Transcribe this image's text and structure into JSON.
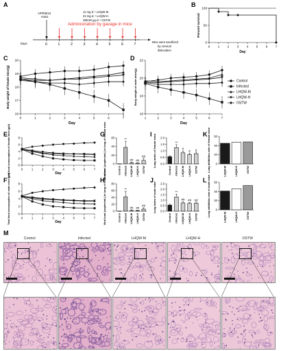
{
  "panel_labels": [
    "A",
    "B",
    "C",
    "D",
    "E",
    "F",
    "G",
    "H",
    "I",
    "J",
    "K",
    "L",
    "M"
  ],
  "timeline": {
    "days_label": "Days",
    "day_ticks": [
      "0",
      "1",
      "2",
      "3",
      "4",
      "5",
      "6",
      "7"
    ],
    "infection_label_1": "A/PR/8/34",
    "infection_label_2": "H1N1",
    "dose_lines": [
      "11 mg·d⁻¹ LHQW-M",
      "22 mg·d⁻¹ LHQW-H",
      "395.90 μg·d⁻¹ OSTW"
    ],
    "admin_text": "Administration by gavage in mice",
    "sacrifice_text_1": "Mice were sacrificed",
    "sacrifice_text_2": "by cervical",
    "sacrifice_text_3": "dislocation",
    "admin_color": "#e8302a"
  },
  "legend": {
    "items": [
      {
        "label": "Control",
        "marker": "circle"
      },
      {
        "label": "Infected",
        "marker": "square"
      },
      {
        "label": "LHQW-M",
        "marker": "triangle-up"
      },
      {
        "label": "LHQW-H",
        "marker": "triangle-down"
      },
      {
        "label": "OSTW",
        "marker": "diamond"
      }
    ]
  },
  "chart_data": [
    {
      "panel": "B",
      "type": "line",
      "ylabel": "Percent survival",
      "xlabel": "Day",
      "x": [
        0,
        1,
        2,
        3,
        7
      ],
      "series": [
        {
          "values": [
            100,
            90,
            80,
            80,
            0
          ]
        }
      ],
      "ylim": [
        0,
        100
      ],
      "yticks": [
        "0",
        "50",
        "100"
      ],
      "xticks": [
        "0",
        "1",
        "2",
        "3",
        "4",
        "5",
        "6",
        "7"
      ]
    },
    {
      "panel": "C",
      "type": "line",
      "ylabel": "Body weight of female mice(g)",
      "xlabel": "Day",
      "x": [
        0,
        1,
        2,
        3,
        4,
        5,
        6,
        7
      ],
      "ylim": [
        16,
        20
      ],
      "yticks": [
        "16",
        "17",
        "18",
        "19",
        "20"
      ],
      "series": [
        {
          "name": "Control",
          "values": [
            18.8,
            19.0,
            19.1,
            19.2,
            19.2,
            19.3,
            19.5,
            19.6
          ]
        },
        {
          "name": "Infected",
          "values": [
            18.6,
            18.4,
            18.2,
            17.9,
            17.6,
            17.3,
            17.0,
            16.3
          ]
        },
        {
          "name": "LHQW-M",
          "values": [
            18.6,
            18.5,
            18.5,
            18.6,
            18.7,
            18.8,
            18.9,
            19.1
          ]
        },
        {
          "name": "LHQW-H",
          "values": [
            18.7,
            18.6,
            18.5,
            18.6,
            18.6,
            18.7,
            18.8,
            18.9
          ]
        },
        {
          "name": "OSTW",
          "values": [
            18.5,
            18.4,
            18.3,
            18.3,
            18.2,
            18.3,
            18.4,
            18.4
          ]
        }
      ]
    },
    {
      "panel": "D",
      "type": "line",
      "ylabel": "Body weight of male mice(g)",
      "xlabel": "Day",
      "x": [
        1,
        2,
        3,
        4,
        5,
        6,
        7
      ],
      "ylim": [
        16,
        22
      ],
      "yticks": [
        "16",
        "18",
        "20",
        "22"
      ],
      "series": [
        {
          "name": "Control",
          "values": [
            19.6,
            19.8,
            20.0,
            20.1,
            20.2,
            20.4,
            20.9
          ]
        },
        {
          "name": "Infected",
          "values": [
            19.4,
            19.0,
            18.7,
            18.4,
            18.1,
            17.7,
            17.3
          ]
        },
        {
          "name": "LHQW-M",
          "values": [
            19.7,
            19.6,
            19.7,
            19.8,
            19.9,
            20.0,
            20.4
          ]
        },
        {
          "name": "LHQW-H",
          "values": [
            19.5,
            19.5,
            19.6,
            19.7,
            19.8,
            19.9,
            20.1
          ]
        },
        {
          "name": "OSTW",
          "values": [
            19.5,
            19.3,
            19.3,
            19.3,
            19.4,
            19.4,
            19.5
          ]
        }
      ]
    },
    {
      "panel": "E",
      "type": "line",
      "ylabel": "Total food consumption of female mice (g/d)",
      "xlabel": "Day",
      "x": [
        0,
        1,
        2,
        3,
        4,
        5,
        6,
        7
      ],
      "ylim": [
        0,
        8
      ],
      "yticks": [
        "0",
        "2",
        "4",
        "6",
        "8"
      ],
      "series": [
        {
          "name": "Control",
          "values": [
            4.8,
            5.4,
            5.7,
            6.0,
            6.2,
            6.3,
            6.5,
            6.6
          ]
        },
        {
          "name": "Infected",
          "values": [
            4.6,
            3.4,
            2.6,
            2.0,
            1.7,
            1.5,
            1.4,
            1.4
          ]
        },
        {
          "name": "LHQW-M",
          "values": [
            4.7,
            4.1,
            3.6,
            3.4,
            3.3,
            3.3,
            3.2,
            3.1
          ]
        },
        {
          "name": "LHQW-H",
          "values": [
            4.7,
            4.3,
            3.9,
            3.6,
            3.4,
            3.3,
            3.3,
            3.2
          ]
        },
        {
          "name": "OSTW",
          "values": [
            4.6,
            4.0,
            3.4,
            3.0,
            2.8,
            2.6,
            2.5,
            2.4
          ]
        }
      ]
    },
    {
      "panel": "F",
      "type": "line",
      "ylabel": "Total food consumption of male mice (g/d)",
      "xlabel": "Day",
      "x": [
        0,
        1,
        2,
        3,
        4,
        5,
        6,
        7
      ],
      "ylim": [
        0,
        8
      ],
      "yticks": [
        "0",
        "2",
        "4",
        "6",
        "8"
      ],
      "series": [
        {
          "name": "Control",
          "values": [
            4.8,
            5.6,
            6.0,
            6.3,
            6.5,
            6.7,
            6.9,
            7.0
          ]
        },
        {
          "name": "Infected",
          "values": [
            4.6,
            3.3,
            2.5,
            2.0,
            1.8,
            1.6,
            1.5,
            1.5
          ]
        },
        {
          "name": "LHQW-M",
          "values": [
            4.7,
            4.3,
            3.9,
            3.8,
            3.6,
            3.5,
            3.4,
            3.4
          ]
        },
        {
          "name": "LHQW-H",
          "values": [
            4.7,
            4.4,
            4.1,
            3.9,
            3.7,
            3.6,
            3.5,
            3.5
          ]
        },
        {
          "name": "OSTW",
          "values": [
            4.6,
            4.0,
            3.5,
            3.2,
            3.0,
            2.8,
            2.7,
            2.6
          ]
        }
      ]
    },
    {
      "panel": "G",
      "type": "bar",
      "ylabel": "Viral load (copies/mL) in lung of female mice",
      "categories": [
        "Control",
        "Infected",
        "LHQW-M",
        "LHQW-H",
        "OSTW"
      ],
      "values": [
        0.2,
        38,
        2,
        1.5,
        8
      ],
      "errors": [
        0.2,
        14,
        2,
        1.5,
        5
      ],
      "ylim": [
        0,
        60
      ],
      "yticks": [
        "0",
        "20",
        "40",
        "60"
      ],
      "colors": [
        "#d0d0d0",
        "#b8b8b8",
        "#d0d0d0",
        "#d0d0d0",
        "#d0d0d0"
      ],
      "sig": [
        "",
        "**",
        "##",
        "##",
        "##"
      ]
    },
    {
      "panel": "H",
      "type": "bar",
      "ylabel": "Viral load (copies/mL) in lung of male mice",
      "categories": [
        "Control",
        "Infected",
        "LHQW-M",
        "LHQW-H",
        "OSTW"
      ],
      "values": [
        0.2,
        42,
        2,
        1.5,
        6
      ],
      "errors": [
        0.2,
        16,
        2,
        1.5,
        4
      ],
      "ylim": [
        0,
        80
      ],
      "yticks": [
        "0",
        "20",
        "40",
        "60",
        "80"
      ],
      "colors": [
        "#d0d0d0",
        "#b8b8b8",
        "#d0d0d0",
        "#d0d0d0",
        "#d0d0d0"
      ],
      "sig": [
        "",
        "**",
        "##",
        "##",
        "##"
      ]
    },
    {
      "panel": "I",
      "type": "bar",
      "ylabel": "Lung index of female mice",
      "categories": [
        "Control",
        "Infected",
        "LHQW-M",
        "LHQW-H",
        "OSTW"
      ],
      "values": [
        0.55,
        1.25,
        0.85,
        0.72,
        0.78
      ],
      "errors": [
        0.08,
        0.22,
        0.14,
        0.1,
        0.12
      ],
      "ylim": [
        0,
        2.0
      ],
      "yticks": [
        "0.0",
        "0.5",
        "1.0",
        "1.5",
        "2.0"
      ],
      "colors": [
        "#1a1a1a",
        "#d0d0d0",
        "#d0d0d0",
        "#d0d0d0",
        "#d0d0d0"
      ],
      "sig": [
        "",
        "**",
        "#",
        "#",
        "#"
      ]
    },
    {
      "panel": "J",
      "type": "bar",
      "ylabel": "Lung index of male mice",
      "categories": [
        "Control",
        "Infected",
        "LHQW-M",
        "LHQW-H",
        "OSTW"
      ],
      "values": [
        0.55,
        1.3,
        0.75,
        0.7,
        0.72
      ],
      "errors": [
        0.08,
        0.25,
        0.12,
        0.1,
        0.1
      ],
      "ylim": [
        0,
        2.5
      ],
      "yticks": [
        "0.0",
        "0.5",
        "1.0",
        "1.5",
        "2.0",
        "2.5"
      ],
      "colors": [
        "#1a1a1a",
        "#d0d0d0",
        "#d0d0d0",
        "#d0d0d0",
        "#d0d0d0"
      ],
      "sig": [
        "",
        "**",
        "##",
        "##",
        "##"
      ]
    },
    {
      "panel": "K",
      "type": "bar",
      "ylabel": "Lung inhibition rate of female mice",
      "categories": [
        "LHQW-M",
        "LHQW-H",
        "OSTW"
      ],
      "values": [
        45,
        47,
        48
      ],
      "ylim": [
        0,
        60
      ],
      "yticks": [
        "0",
        "20",
        "40",
        "60"
      ],
      "colors": [
        "#1a1a1a",
        "#ffffff",
        "#9a9a9a"
      ]
    },
    {
      "panel": "L",
      "type": "bar",
      "ylabel": "Lung inhibition rate of male mice",
      "categories": [
        "LHQW-M",
        "LHQW-H",
        "OSTW"
      ],
      "values": [
        41,
        46,
        53
      ],
      "ylim": [
        0,
        60
      ],
      "yticks": [
        "0",
        "20",
        "40",
        "60"
      ],
      "colors": [
        "#1a1a1a",
        "#ffffff",
        "#9a9a9a"
      ]
    }
  ],
  "histology": {
    "titles": [
      "Control",
      "Infected",
      "LHQW-M",
      "LHQW-H",
      "OSTW"
    ]
  }
}
